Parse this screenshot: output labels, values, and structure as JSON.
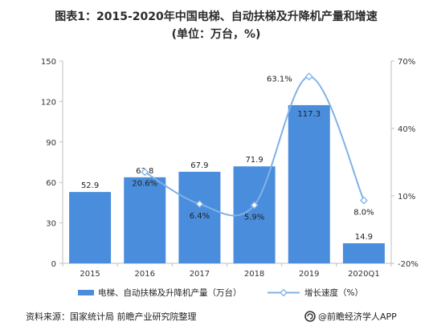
{
  "chart_data": {
    "type": "bar+line",
    "title_line1": "图表1：2015-2020年中国电梯、自动扶梯及升降机产量和增速",
    "title_line2": "(单位：万台，%)",
    "categories": [
      "2015",
      "2016",
      "2017",
      "2018",
      "2019",
      "2020Q1"
    ],
    "bar_series": {
      "name": "电梯、自动扶梯及升降机产量（万台）",
      "values": [
        52.9,
        63.8,
        67.9,
        71.9,
        117.3,
        14.9
      ],
      "labels": [
        "52.9",
        "63.8",
        "67.9",
        "71.9",
        "117.3",
        "14.9"
      ],
      "color": "#4a8ddc"
    },
    "line_series": {
      "name": "增长速度（%）",
      "x_categories": [
        "2016",
        "2017",
        "2018",
        "2019",
        "2020Q1"
      ],
      "values": [
        20.6,
        6.4,
        5.9,
        63.1,
        8.0
      ],
      "labels": [
        "20.6%",
        "6.4%",
        "5.9%",
        "63.1%",
        "8.0%"
      ],
      "color": "#7fb2e6"
    },
    "y_left": {
      "ticks": [
        "0",
        "30",
        "60",
        "90",
        "120",
        "150"
      ],
      "lim": [
        0,
        150
      ]
    },
    "y_right": {
      "ticks": [
        "-20%",
        "10%",
        "40%",
        "70%"
      ],
      "lim": [
        -20,
        70
      ]
    },
    "grid": false,
    "legend": "bottom"
  },
  "footer": {
    "source": "资料来源：国家统计局 前瞻产业研究院整理",
    "brand": "@前瞻经济学人APP"
  }
}
